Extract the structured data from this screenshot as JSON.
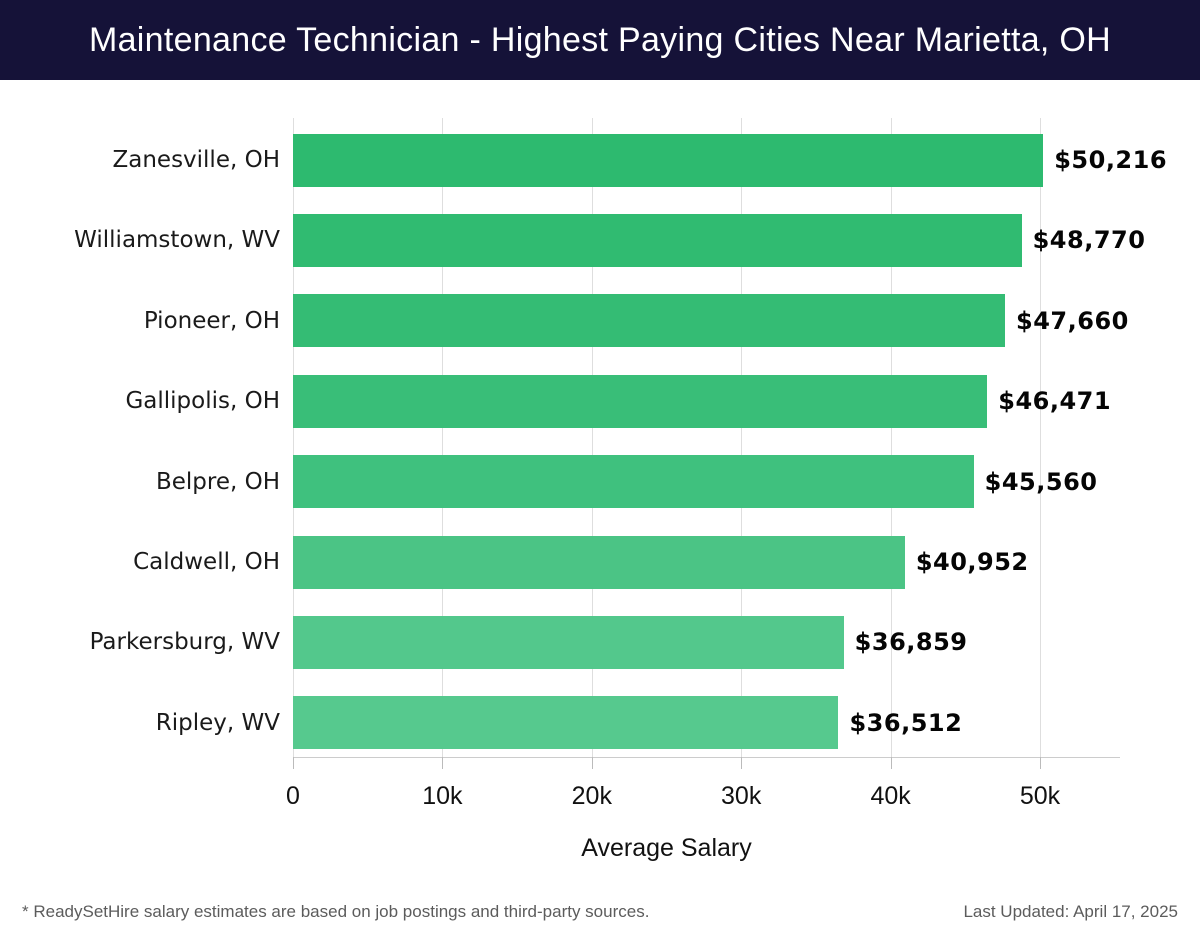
{
  "header": {
    "title": "Maintenance Technician - Highest Paying Cities Near Marietta, OH"
  },
  "chart_data": {
    "type": "bar",
    "orientation": "horizontal",
    "title": "Maintenance Technician - Highest Paying Cities Near Marietta, OH",
    "categories": [
      "Zanesville, OH",
      "Williamstown, WV",
      "Pioneer, OH",
      "Gallipolis, OH",
      "Belpre, OH",
      "Caldwell, OH",
      "Parkersburg, WV",
      "Ripley, WV"
    ],
    "values": [
      50216,
      48770,
      47660,
      46471,
      45560,
      40952,
      36859,
      36512
    ],
    "value_labels": [
      "$50,216",
      "$48,770",
      "$47,660",
      "$46,471",
      "$45,560",
      "$40,952",
      "$36,859",
      "$36,512"
    ],
    "bar_colors": [
      "#2dba6f",
      "#30bb71",
      "#34bc74",
      "#39be78",
      "#3fc17e",
      "#4bc485",
      "#53c88c",
      "#56c98e"
    ],
    "xlabel": "Average Salary",
    "xlim": [
      0,
      52500
    ],
    "xticks": {
      "values": [
        0,
        10000,
        20000,
        30000,
        40000,
        50000
      ],
      "labels": [
        "0",
        "10k",
        "20k",
        "30k",
        "40k",
        "50k"
      ]
    },
    "grid": "vertical",
    "legend": "none"
  },
  "footer": {
    "disclaimer": "* ReadySetHire salary estimates are based on job postings and third-party sources.",
    "last_updated": "Last Updated: April 17, 2025"
  }
}
